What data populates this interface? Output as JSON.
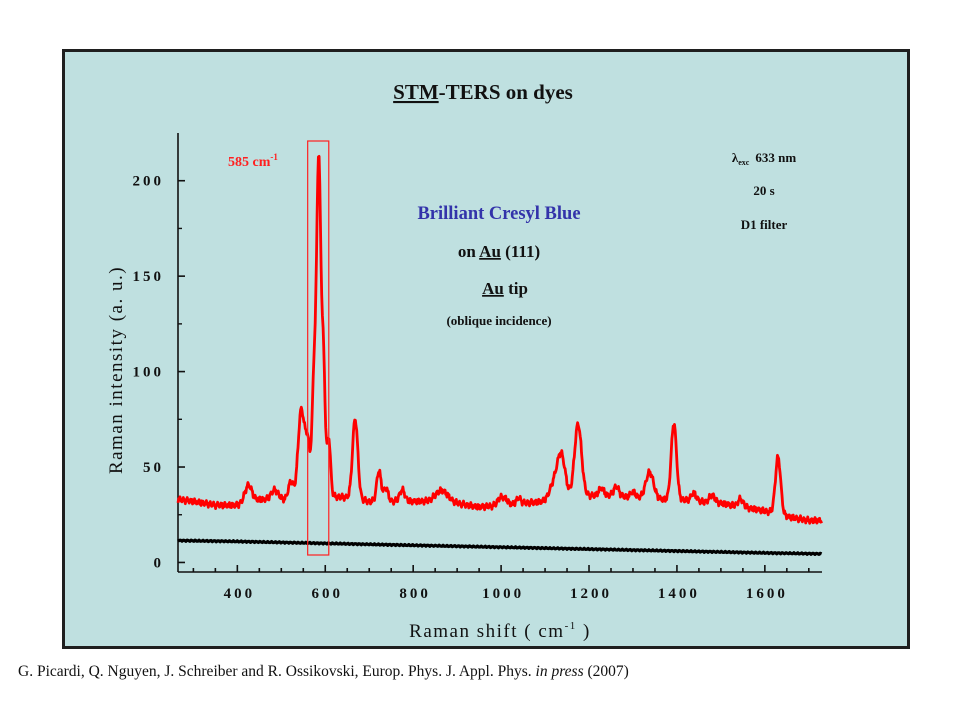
{
  "slide": {
    "citation_authors": "G. Picardi, Q. Nguyen, J. Schreiber and R. Ossikovski, Europ. Phys. J. Appl. Phys.",
    "citation_status": "in press",
    "citation_year": "(2007)"
  },
  "colors": {
    "background": "#bfe0e0",
    "tip_spectrum": "#ff0000",
    "reference_spectrum": "#000000",
    "title_blue": "#3333aa",
    "highlight": "#ff0000"
  },
  "chart_data": {
    "type": "line",
    "title": {
      "underlined": "STM",
      "rest": "-TERS on dyes"
    },
    "xlabel": {
      "main": "Raman shift ( cm",
      "sup": "-1",
      "end": " )"
    },
    "ylabel": "Raman intensity (a. u.)",
    "xlim": [
      265,
      1730
    ],
    "ylim": [
      -5,
      225
    ],
    "xticks": [
      400,
      600,
      800,
      1000,
      1200,
      1400,
      1600
    ],
    "yticks": [
      0,
      50,
      100,
      150,
      200
    ],
    "grid": false,
    "annotations": {
      "peak_value": "585 cm",
      "peak_sup": "-1",
      "peak_box_x": [
        560,
        608
      ],
      "sample_name": "Brilliant Cresyl Blue",
      "substrate_prefix": "on ",
      "substrate_underlined": "Au",
      "substrate_suffix": " (111)",
      "tip_underlined": "Au",
      "tip_suffix": " tip",
      "geometry": "(oblique incidence)",
      "lambda_symbol": "λ",
      "lambda_sub": "exc",
      "wavelength": "633 nm",
      "time": "20 s",
      "filter": "D1 filter"
    },
    "series": [
      {
        "color": "#ff0000",
        "baseline": [
          [
            265,
            33
          ],
          [
            300,
            32
          ],
          [
            350,
            30
          ],
          [
            400,
            30
          ],
          [
            450,
            33
          ],
          [
            500,
            33
          ],
          [
            530,
            32
          ],
          [
            560,
            34
          ],
          [
            600,
            35
          ],
          [
            650,
            34
          ],
          [
            700,
            32
          ],
          [
            750,
            32
          ],
          [
            800,
            32
          ],
          [
            850,
            32
          ],
          [
            900,
            31
          ],
          [
            950,
            29
          ],
          [
            1000,
            30
          ],
          [
            1050,
            31
          ],
          [
            1100,
            32
          ],
          [
            1150,
            34
          ],
          [
            1200,
            35
          ],
          [
            1250,
            35
          ],
          [
            1300,
            34
          ],
          [
            1350,
            33
          ],
          [
            1400,
            33
          ],
          [
            1450,
            32
          ],
          [
            1500,
            31
          ],
          [
            1550,
            29
          ],
          [
            1600,
            27
          ],
          [
            1650,
            24
          ],
          [
            1700,
            22
          ],
          [
            1730,
            22
          ]
        ],
        "peaks": [
          [
            425,
            9,
            8
          ],
          [
            485,
            5,
            8
          ],
          [
            522,
            10,
            6
          ],
          [
            545,
            46,
            7
          ],
          [
            560,
            28,
            6
          ],
          [
            574,
            55,
            4
          ],
          [
            585,
            177,
            5
          ],
          [
            596,
            65,
            4
          ],
          [
            608,
            30,
            4
          ],
          [
            668,
            42,
            6
          ],
          [
            722,
            16,
            5
          ],
          [
            738,
            7,
            5
          ],
          [
            775,
            6,
            6
          ],
          [
            865,
            6,
            14
          ],
          [
            998,
            4,
            6
          ],
          [
            1010,
            3,
            5
          ],
          [
            1040,
            3,
            5
          ],
          [
            1120,
            8,
            10
          ],
          [
            1137,
            22,
            9
          ],
          [
            1175,
            38,
            8
          ],
          [
            1228,
            4,
            6
          ],
          [
            1262,
            5,
            6
          ],
          [
            1300,
            3,
            6
          ],
          [
            1338,
            14,
            9
          ],
          [
            1393,
            40,
            6
          ],
          [
            1438,
            4,
            6
          ],
          [
            1480,
            4,
            6
          ],
          [
            1545,
            4,
            6
          ],
          [
            1630,
            30,
            6
          ]
        ]
      },
      {
        "color": "#000000",
        "points": [
          [
            265,
            11.5
          ],
          [
            400,
            11
          ],
          [
            600,
            10
          ],
          [
            800,
            9
          ],
          [
            1000,
            8
          ],
          [
            1200,
            7
          ],
          [
            1400,
            6
          ],
          [
            1600,
            5
          ],
          [
            1730,
            4.5
          ]
        ]
      }
    ]
  }
}
